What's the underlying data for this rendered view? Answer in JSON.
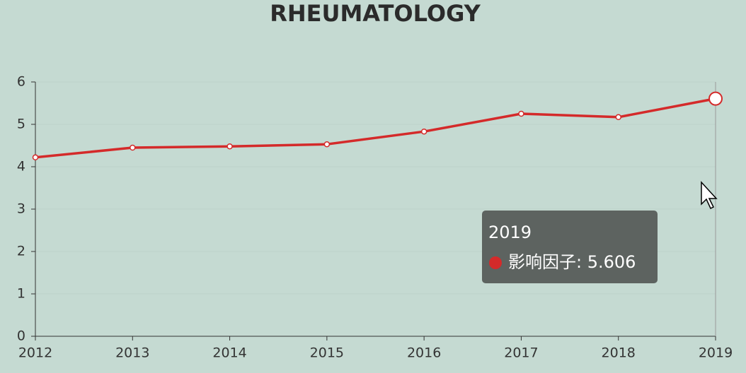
{
  "chart_data": {
    "type": "line",
    "title": "RHEUMATOLOGY",
    "x": [
      2012,
      2013,
      2014,
      2015,
      2016,
      2017,
      2018,
      2019
    ],
    "series": [
      {
        "name": "影响因子",
        "color": "#d42a2a",
        "values": [
          4.22,
          4.45,
          4.48,
          4.53,
          4.83,
          5.25,
          5.17,
          5.606
        ]
      }
    ],
    "xlim": [
      2012,
      2019
    ],
    "xticks": [
      2012,
      2013,
      2014,
      2015,
      2016,
      2017,
      2018,
      2019
    ],
    "ylim": [
      0,
      6
    ],
    "yticks": [
      0,
      1,
      2,
      3,
      4,
      5,
      6
    ],
    "grid": true,
    "tooltip": "影响因子: 5.606"
  }
}
